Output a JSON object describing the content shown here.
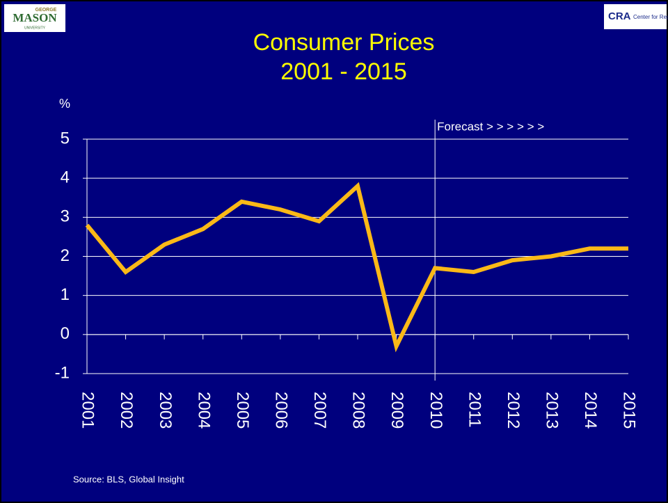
{
  "logos": {
    "left": [
      "GEORGE",
      "MASON",
      "UNIVERSITY"
    ],
    "right": [
      "CRA",
      "Center for Regional Analys"
    ]
  },
  "chart_data": {
    "type": "line",
    "title": [
      "Consumer Prices",
      "2001 - 2015"
    ],
    "y_label": "%",
    "x": [
      2001,
      2002,
      2003,
      2004,
      2005,
      2006,
      2007,
      2008,
      2009,
      2010,
      2011,
      2012,
      2013,
      2014,
      2015
    ],
    "series": [
      {
        "name": "Consumer Prices",
        "color": "#fbb917",
        "values": [
          2.8,
          1.6,
          2.3,
          2.7,
          3.4,
          3.2,
          2.9,
          3.8,
          -0.3,
          1.7,
          1.6,
          1.9,
          2.0,
          2.2,
          2.2
        ]
      }
    ],
    "xlim": [
      2001,
      2015
    ],
    "xticks": [
      2001,
      2002,
      2003,
      2004,
      2005,
      2006,
      2007,
      2008,
      2009,
      2010,
      2011,
      2012,
      2013,
      2014,
      2015
    ],
    "ylim": [
      -1,
      5
    ],
    "yticks": [
      -1,
      0,
      1,
      2,
      3,
      4,
      5
    ],
    "grid": true,
    "annotations": [
      {
        "text": "Forecast > > > > > >",
        "x": 2010
      }
    ],
    "source": "Source: BLS, Global Insight"
  }
}
